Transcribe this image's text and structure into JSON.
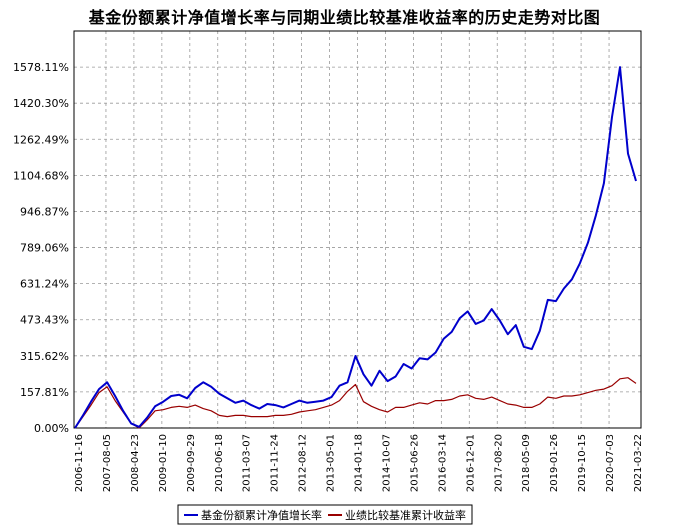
{
  "chart_data": {
    "type": "line",
    "title": "基金份额累计净值增长率与同期业绩比较基准收益率的历史走势对比图",
    "xlabel": "",
    "ylabel": "",
    "x_tick_labels": [
      "2006-11-16",
      "2007-08-05",
      "2008-04-23",
      "2009-01-10",
      "2009-09-29",
      "2010-06-18",
      "2011-03-07",
      "2011-11-24",
      "2012-08-12",
      "2013-05-01",
      "2014-01-18",
      "2014-10-07",
      "2015-06-26",
      "2016-03-14",
      "2016-12-01",
      "2017-08-20",
      "2018-05-09",
      "2019-01-26",
      "2019-10-15",
      "2020-07-03",
      "2021-03-22"
    ],
    "y_tick_labels": [
      "0.00%",
      "157.81%",
      "315.62%",
      "473.43%",
      "631.24%",
      "789.06%",
      "946.87%",
      "1104.68%",
      "1262.49%",
      "1420.30%",
      "1578.11%"
    ],
    "ylim": [
      0,
      1735.92
    ],
    "grid": true,
    "legend_position": "bottom",
    "series": [
      {
        "name": "基金份额累计净值增长率",
        "color": "#0000cc",
        "values": [
          0,
          55,
          115,
          170,
          200,
          140,
          75,
          20,
          5,
          45,
          95,
          115,
          140,
          145,
          130,
          175,
          200,
          180,
          150,
          130,
          110,
          120,
          100,
          85,
          105,
          100,
          90,
          105,
          120,
          110,
          115,
          120,
          135,
          185,
          200,
          315,
          235,
          185,
          250,
          205,
          225,
          280,
          260,
          305,
          300,
          330,
          390,
          420,
          480,
          510,
          455,
          470,
          520,
          470,
          410,
          450,
          355,
          345,
          425,
          560,
          555,
          610,
          650,
          720,
          810,
          930,
          1070,
          1360,
          1578,
          1200,
          1080
        ]
      },
      {
        "name": "业绩比较基准累计收益率",
        "color": "#990000",
        "values": [
          0,
          50,
          100,
          155,
          180,
          120,
          70,
          20,
          0,
          35,
          75,
          80,
          90,
          95,
          90,
          100,
          85,
          75,
          55,
          50,
          55,
          55,
          50,
          50,
          50,
          55,
          55,
          60,
          70,
          75,
          80,
          90,
          100,
          120,
          160,
          190,
          115,
          95,
          80,
          70,
          90,
          90,
          100,
          110,
          105,
          120,
          120,
          125,
          140,
          145,
          130,
          125,
          135,
          120,
          105,
          100,
          90,
          90,
          105,
          135,
          130,
          140,
          140,
          145,
          155,
          165,
          170,
          185,
          215,
          220,
          195
        ]
      }
    ]
  }
}
